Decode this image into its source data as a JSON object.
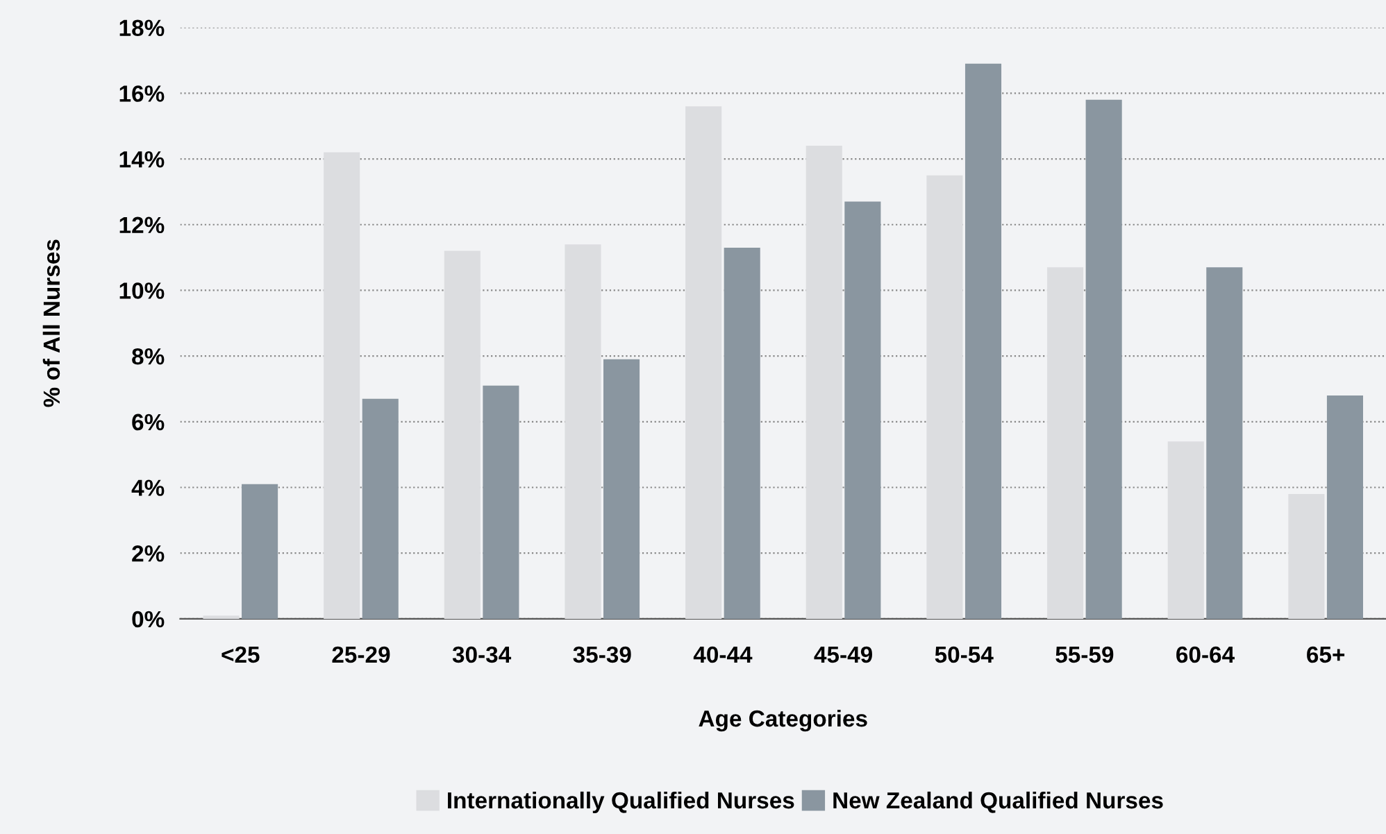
{
  "chart_data": {
    "type": "bar",
    "xlabel": "Age Categories",
    "ylabel": "% of All Nurses",
    "categories": [
      "<25",
      "25-29",
      "30-34",
      "35-39",
      "40-44",
      "45-49",
      "50-54",
      "55-59",
      "60-64",
      "65+"
    ],
    "series": [
      {
        "name": "Internationally Qualified Nurses",
        "color": "#dcdde0",
        "values": [
          0.1,
          14.2,
          11.2,
          11.4,
          15.6,
          14.4,
          13.5,
          10.7,
          5.4,
          3.8
        ]
      },
      {
        "name": "New Zealand Qualified Nurses",
        "color": "#8a96a0",
        "values": [
          4.1,
          6.7,
          7.1,
          7.9,
          11.3,
          12.7,
          16.9,
          15.8,
          10.7,
          6.8
        ]
      }
    ],
    "ylim": [
      0,
      18
    ],
    "yticks": [
      {
        "value": 0,
        "label": "0%"
      },
      {
        "value": 2,
        "label": "2%"
      },
      {
        "value": 4,
        "label": "4%"
      },
      {
        "value": 6,
        "label": "6%"
      },
      {
        "value": 8,
        "label": "8%"
      },
      {
        "value": 10,
        "label": "10%"
      },
      {
        "value": 12,
        "label": "12%"
      },
      {
        "value": 14,
        "label": "14%"
      },
      {
        "value": 16,
        "label": "16%"
      },
      {
        "value": 18,
        "label": "18%"
      }
    ],
    "grid": "y",
    "legend": "bottom"
  }
}
